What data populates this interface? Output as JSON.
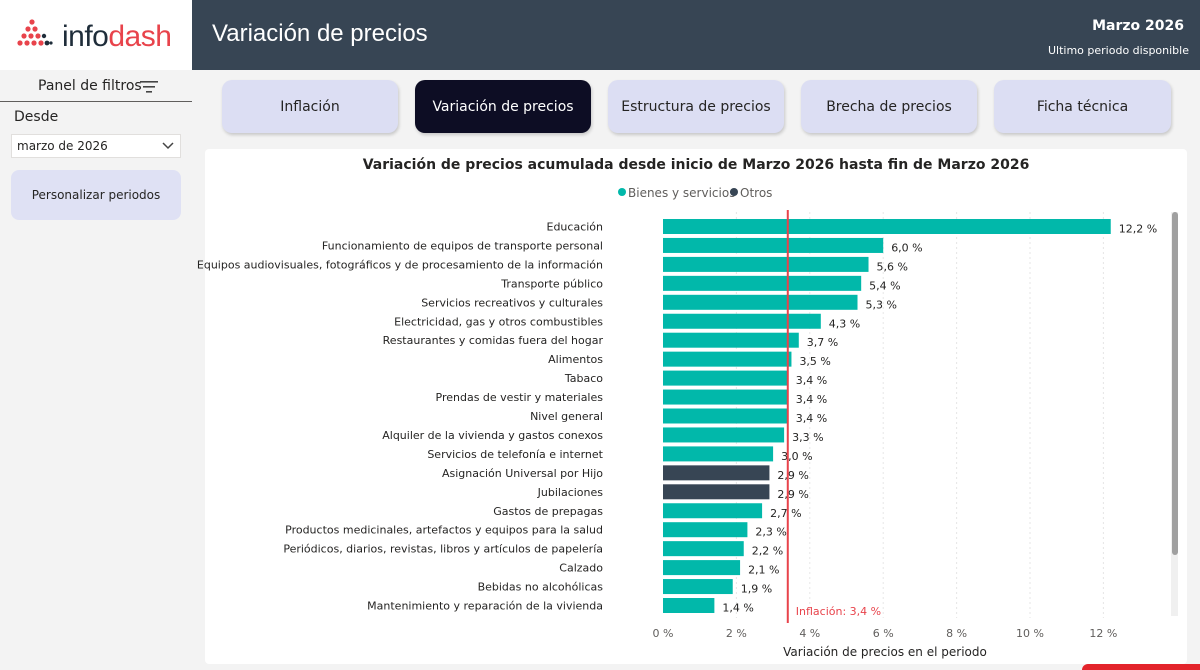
{
  "logo": {
    "part1": "info",
    "part2": "dash"
  },
  "sidebar": {
    "filter_title": "Panel de filtros",
    "desde_label": "Desde",
    "period_value": "marzo de 2026",
    "custom_button": "Personalizar periodos"
  },
  "header": {
    "title": "Variación de precios",
    "period": "Marzo 2026",
    "period_note": "Ultimo periodo disponible"
  },
  "tabs": [
    {
      "label": "Inflación",
      "active": false
    },
    {
      "label": "Variación de precios",
      "active": true
    },
    {
      "label": "Estructura de precios",
      "active": false
    },
    {
      "label": "Brecha de precios",
      "active": false
    },
    {
      "label": "Ficha técnica",
      "active": false
    }
  ],
  "colors": {
    "header_bg": "#374554",
    "bienes": "#01b8aa",
    "otros": "#374554",
    "reference_line": "#e8434b",
    "brand_red": "#e8434b"
  },
  "chart_data": {
    "type": "bar",
    "orientation": "horizontal",
    "title": "Variación de precios acumulada desde inicio de Marzo 2026 hasta fin de Marzo 2026",
    "xlabel": "Variación de precios en el periodo",
    "ylabel": "",
    "xlim": [
      0,
      13
    ],
    "xticks": [
      0,
      2,
      4,
      6,
      8,
      10,
      12
    ],
    "tick_labels": [
      "0 %",
      "2 %",
      "4 %",
      "6 %",
      "8 %",
      "10 %",
      "12 %"
    ],
    "grid": true,
    "legend": {
      "position": "top-center",
      "entries": [
        "Bienes y servicios",
        "Otros"
      ]
    },
    "reference_line": {
      "value": 3.4,
      "label": "Inflación: 3,4 %"
    },
    "categories": [
      "Educación",
      "Funcionamiento de equipos de transporte personal",
      "Equipos audiovisuales, fotográficos y de procesamiento de la información",
      "Transporte público",
      "Servicios recreativos y culturales",
      "Electricidad, gas y otros combustibles",
      "Restaurantes y comidas fuera del hogar",
      "Alimentos",
      "Tabaco",
      "Prendas de vestir y materiales",
      "Nivel general",
      "Alquiler de la vivienda y gastos conexos",
      "Servicios de telefonía e internet",
      "Asignación Universal por Hijo",
      "Jubilaciones",
      "Gastos de prepagas",
      "Productos medicinales, artefactos y equipos para la salud",
      "Periódicos, diarios, revistas, libros y artículos de papelería",
      "Calzado",
      "Bebidas no alcohólicas",
      "Mantenimiento y reparación de la vivienda"
    ],
    "values": [
      12.2,
      6.0,
      5.6,
      5.4,
      5.3,
      4.3,
      3.7,
      3.5,
      3.4,
      3.4,
      3.4,
      3.3,
      3.0,
      2.9,
      2.9,
      2.7,
      2.3,
      2.2,
      2.1,
      1.9,
      1.4
    ],
    "value_labels": [
      "12,2 %",
      "6,0 %",
      "5,6 %",
      "5,4 %",
      "5,3 %",
      "4,3 %",
      "3,7 %",
      "3,5 %",
      "3,4 %",
      "3,4 %",
      "3,4 %",
      "3,3 %",
      "3,0 %",
      "2,9 %",
      "2,9 %",
      "2,7 %",
      "2,3 %",
      "2,2 %",
      "2,1 %",
      "1,9 %",
      "1,4 %"
    ],
    "groups": [
      "Bienes y servicios",
      "Bienes y servicios",
      "Bienes y servicios",
      "Bienes y servicios",
      "Bienes y servicios",
      "Bienes y servicios",
      "Bienes y servicios",
      "Bienes y servicios",
      "Bienes y servicios",
      "Bienes y servicios",
      "Bienes y servicios",
      "Bienes y servicios",
      "Bienes y servicios",
      "Otros",
      "Otros",
      "Bienes y servicios",
      "Bienes y servicios",
      "Bienes y servicios",
      "Bienes y servicios",
      "Bienes y servicios",
      "Bienes y servicios"
    ]
  }
}
